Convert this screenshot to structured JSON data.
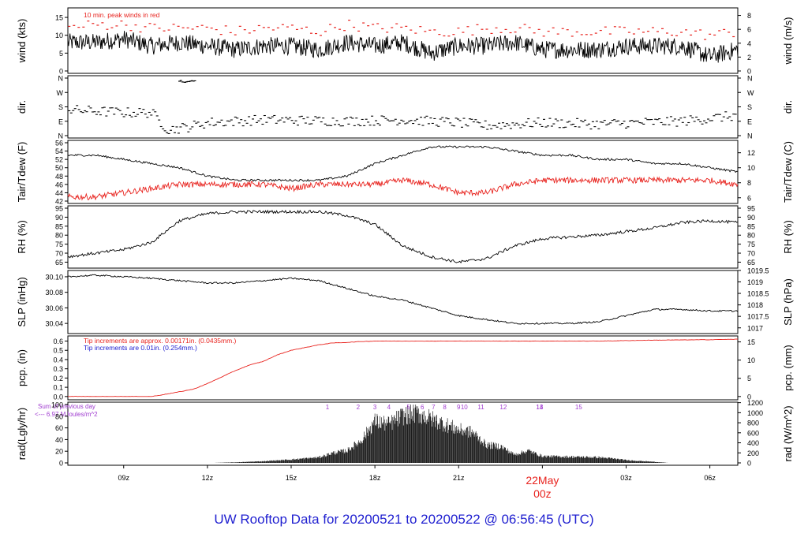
{
  "footer_title": "UW Rooftop Data for 20200521  to  20200522 @ 06:56:45  (UTC)",
  "colors": {
    "black": "#000000",
    "red": "#e8231e",
    "blue": "#1f1fd0",
    "purple": "#a03cd0"
  },
  "chart_data": [
    {
      "type": "line",
      "id": "wind",
      "ylabel_left": "wind (kts)",
      "ylabel_right": "wind (m/s)",
      "ylim": [
        0,
        17
      ],
      "yticks_left": [
        0,
        5,
        10,
        15
      ],
      "yticks_right": [
        {
          "label": "0",
          "at": 0
        },
        {
          "label": "2",
          "at": 3.89
        },
        {
          "label": "4",
          "at": 7.78
        },
        {
          "label": "6",
          "at": 11.66
        },
        {
          "label": "8",
          "at": 15.55
        }
      ],
      "annotation": "10 min. peak winds in red",
      "series": [
        {
          "color": "#000000",
          "x": [
            7,
            8,
            9,
            10,
            11,
            12,
            13,
            14,
            15,
            16,
            17,
            18,
            19,
            20,
            21,
            22,
            23,
            24,
            25,
            26,
            27,
            28,
            29,
            30,
            31
          ],
          "y": [
            8,
            8,
            9,
            7,
            8,
            7,
            6,
            7,
            7,
            6,
            8,
            7,
            8,
            5,
            7,
            7,
            8,
            6,
            6,
            6,
            7,
            7,
            7,
            4,
            6
          ]
        },
        {
          "color": "#e8231e",
          "style": "dash",
          "x": [
            7,
            8,
            9,
            10,
            11,
            12,
            13,
            14,
            15,
            16,
            17,
            18,
            19,
            20,
            21,
            22,
            23,
            24,
            25,
            26,
            27,
            28,
            29,
            30,
            31
          ],
          "y": [
            12,
            13,
            13,
            12,
            12,
            12,
            11,
            12,
            12,
            11,
            13,
            12,
            12,
            11,
            11,
            12,
            12,
            11,
            11,
            11,
            11,
            11,
            11,
            10,
            11
          ]
        }
      ]
    },
    {
      "type": "scatter",
      "id": "dir",
      "ylabel_left": "dir.",
      "ylabel_right": "dir.",
      "yticks_left": [
        "N",
        "E",
        "S",
        "W",
        "N"
      ],
      "yticks_right": [
        "N",
        "E",
        "S",
        "W",
        "N"
      ],
      "series": [
        {
          "color": "#000000",
          "x": [
            7,
            8,
            9,
            10,
            11,
            12,
            13,
            14,
            15,
            16,
            17,
            18,
            19,
            20,
            21,
            22,
            23,
            24,
            25,
            26,
            27,
            28,
            29,
            30,
            31
          ],
          "y": [
            "S-E",
            "S-E",
            "S",
            "E",
            "N",
            "E",
            "E",
            "E",
            "E",
            "E",
            "E",
            "E",
            "E",
            "E",
            "E",
            "E",
            "N-E",
            "E",
            "E",
            "E",
            "E",
            "E",
            "E",
            "E",
            "E"
          ]
        }
      ]
    },
    {
      "type": "line",
      "id": "temp",
      "ylabel_left": "Tair/Tdew (F)",
      "ylabel_right": "Tair/Tdew (C)",
      "ylim": [
        42,
        56
      ],
      "yticks_left": [
        42,
        44,
        46,
        48,
        50,
        52,
        54,
        56
      ],
      "yticks_right": [
        {
          "label": "6",
          "at": 42.8
        },
        {
          "label": "8",
          "at": 46.4
        },
        {
          "label": "10",
          "at": 50.0
        },
        {
          "label": "12",
          "at": 53.6
        }
      ],
      "series": [
        {
          "color": "#000000",
          "x": [
            7,
            8,
            9,
            10,
            11,
            12,
            13,
            14,
            15,
            16,
            17,
            18,
            19,
            20,
            21,
            22,
            23,
            24,
            25,
            26,
            27,
            28,
            29,
            30,
            31
          ],
          "y": [
            53,
            53,
            52,
            51,
            50,
            48,
            47,
            47,
            47,
            47,
            48,
            51,
            53,
            55,
            55,
            55,
            54,
            53,
            53,
            52,
            52,
            51,
            51,
            50,
            49
          ]
        },
        {
          "color": "#e8231e",
          "x": [
            7,
            8,
            9,
            10,
            11,
            12,
            13,
            14,
            15,
            16,
            17,
            18,
            19,
            20,
            21,
            22,
            23,
            24,
            25,
            26,
            27,
            28,
            29,
            30,
            31
          ],
          "y": [
            43,
            43,
            44,
            45,
            46,
            46,
            46,
            46,
            45,
            46,
            46,
            46,
            47,
            46,
            44,
            44,
            46,
            47,
            47,
            47,
            47,
            47,
            47,
            47,
            46
          ]
        }
      ]
    },
    {
      "type": "line",
      "id": "rh",
      "ylabel_left": "RH (%)",
      "ylabel_right": "RH (%)",
      "ylim": [
        63,
        95
      ],
      "yticks_left": [
        65,
        70,
        75,
        80,
        85,
        90,
        95
      ],
      "yticks_right": [
        65,
        70,
        75,
        80,
        85,
        90,
        95
      ],
      "series": [
        {
          "color": "#000000",
          "x": [
            7,
            8,
            9,
            10,
            11,
            12,
            13,
            14,
            15,
            16,
            17,
            18,
            19,
            20,
            21,
            22,
            23,
            24,
            25,
            26,
            27,
            28,
            29,
            30,
            31
          ],
          "y": [
            68,
            70,
            72,
            76,
            88,
            92,
            93,
            93,
            93,
            93,
            91,
            86,
            74,
            68,
            65,
            67,
            74,
            78,
            79,
            80,
            82,
            84,
            87,
            88,
            87
          ]
        }
      ]
    },
    {
      "type": "line",
      "id": "slp",
      "ylabel_left": "SLP (inHg)",
      "ylabel_right": "SLP (hPa)",
      "ylim": [
        30.03,
        30.105
      ],
      "yticks_left": [
        30.04,
        30.06,
        30.08,
        30.1
      ],
      "yticks_right": [
        {
          "label": "1017",
          "at": 30.0343
        },
        {
          "label": "1017.5",
          "at": 30.0491
        },
        {
          "label": "1018",
          "at": 30.0638
        },
        {
          "label": "1018.5",
          "at": 30.0786
        },
        {
          "label": "1019",
          "at": 30.0934
        },
        {
          "label": "1019.5",
          "at": 30.1081
        }
      ],
      "series": [
        {
          "color": "#000000",
          "x": [
            7,
            8,
            9,
            10,
            11,
            12,
            13,
            14,
            15,
            16,
            17,
            18,
            19,
            20,
            21,
            22,
            23,
            24,
            25,
            26,
            27,
            28,
            29,
            30,
            31
          ],
          "y": [
            30.1,
            30.102,
            30.1,
            30.098,
            30.095,
            30.092,
            30.092,
            30.095,
            30.098,
            30.095,
            30.085,
            30.075,
            30.07,
            30.06,
            30.05,
            30.045,
            30.04,
            30.04,
            30.04,
            30.042,
            30.05,
            30.058,
            30.058,
            30.056,
            30.056
          ]
        }
      ]
    },
    {
      "type": "line",
      "id": "pcp",
      "ylabel_left": "pcp. (in)",
      "ylabel_right": "pcp. (mm)",
      "ylim": [
        -0.01,
        0.63
      ],
      "yticks_left": [
        0.0,
        0.1,
        0.2,
        0.3,
        0.4,
        0.5,
        0.6
      ],
      "yticks_right": [
        {
          "label": "0",
          "at": 0
        },
        {
          "label": "5",
          "at": 0.197
        },
        {
          "label": "10",
          "at": 0.394
        },
        {
          "label": "15",
          "at": 0.591
        }
      ],
      "annotations": [
        {
          "text": "Tip increments are approx. 0.00171in. (0.0435mm.)",
          "color": "#e8231e"
        },
        {
          "text": "Tip increments are 0.01in. (0.254mm.)",
          "color": "#1f1fd0"
        }
      ],
      "series": [
        {
          "color": "#e8231e",
          "x": [
            7,
            8,
            9,
            10,
            10.8,
            11.5,
            12,
            12.5,
            13,
            13.5,
            14,
            14.5,
            15,
            15.5,
            16,
            16.5,
            17,
            17.5,
            18,
            20,
            22,
            24,
            26,
            28,
            30,
            31
          ],
          "y": [
            0,
            0,
            0,
            0,
            0.04,
            0.08,
            0.14,
            0.21,
            0.28,
            0.34,
            0.38,
            0.45,
            0.5,
            0.53,
            0.56,
            0.58,
            0.585,
            0.595,
            0.6,
            0.6,
            0.6,
            0.6,
            0.6,
            0.61,
            0.615,
            0.62
          ]
        }
      ]
    },
    {
      "type": "area",
      "id": "rad",
      "ylabel_left": "rad(Lgly/hr)",
      "ylabel_right": "rad (W/m^2)",
      "ylim": [
        0,
        100
      ],
      "yticks_left": [
        0,
        20,
        40,
        60,
        80,
        100
      ],
      "yticks_right": [
        {
          "label": "0",
          "at": 0
        },
        {
          "label": "200",
          "at": 17.2
        },
        {
          "label": "400",
          "at": 34.4
        },
        {
          "label": "600",
          "at": 51.6
        },
        {
          "label": "800",
          "at": 68.8
        },
        {
          "label": "1000",
          "at": 86.0
        },
        {
          "label": "1200",
          "at": 103.2
        }
      ],
      "top_labels": [
        "1",
        "2",
        "3",
        "4",
        "5",
        "6",
        "7",
        "8",
        "9",
        "10",
        "11",
        "12",
        "13",
        "14",
        "15"
      ],
      "annotations": [
        "Sum of previous day",
        "<--- 6.97 MJoules/m^2"
      ],
      "series": [
        {
          "color": "#000000",
          "x": [
            12.2,
            13,
            14,
            15,
            16,
            16.5,
            17,
            17.5,
            18,
            18.5,
            19,
            19.5,
            20,
            20.5,
            21,
            21.5,
            22,
            22.5,
            23,
            23.5,
            24,
            25,
            26,
            26.5,
            27,
            28,
            28.5
          ],
          "y": [
            0,
            1,
            3,
            6,
            10,
            18,
            22,
            40,
            75,
            70,
            85,
            90,
            80,
            70,
            60,
            55,
            32,
            30,
            15,
            22,
            12,
            11,
            10,
            8,
            5,
            2,
            0
          ]
        }
      ]
    }
  ],
  "x_axis": {
    "xlim": [
      7,
      31
    ],
    "ticks": [
      {
        "label": "09z",
        "x": 9
      },
      {
        "label": "12z",
        "x": 12
      },
      {
        "label": "15z",
        "x": 15
      },
      {
        "label": "18z",
        "x": 18
      },
      {
        "label": "21z",
        "x": 21
      },
      {
        "label": "03z",
        "x": 27
      },
      {
        "label": "06z",
        "x": 30
      }
    ],
    "day_marker": {
      "line1": "22May",
      "line2": "00z",
      "x": 24,
      "color": "#e8231e"
    }
  }
}
